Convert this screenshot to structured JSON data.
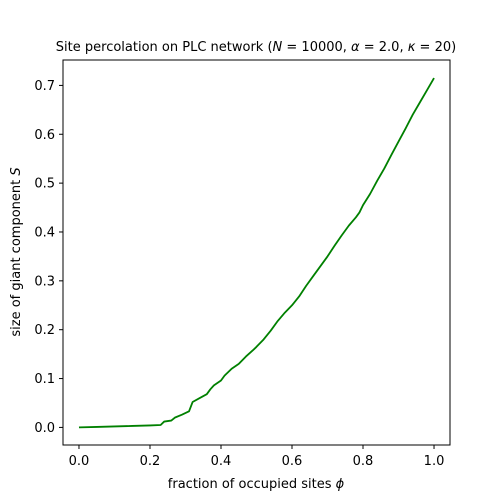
{
  "chart_data": {
    "type": "line",
    "title": "Site percolation on PLC network (N = 10000, α = 2.0, κ = 20)",
    "title_parts": {
      "prefix": "Site percolation on PLC network (",
      "N_symbol": "N",
      "N_eq": " = 10000, ",
      "alpha_symbol": "α",
      "alpha_eq": " = 2.0, ",
      "kappa_symbol": "κ",
      "kappa_eq": " = 20)"
    },
    "xlabel": "fraction of occupied sites ϕ",
    "xlabel_parts": {
      "text": "fraction of occupied sites ",
      "symbol": "ϕ"
    },
    "ylabel": "size of giant component S",
    "ylabel_parts": {
      "text": "size of giant component ",
      "symbol": "S"
    },
    "xlim": [
      -0.045,
      1.045
    ],
    "ylim": [
      -0.036,
      0.752
    ],
    "xticks": [
      0.0,
      0.2,
      0.4,
      0.6,
      0.8,
      1.0
    ],
    "xtick_labels": [
      "0.0",
      "0.2",
      "0.4",
      "0.6",
      "0.8",
      "1.0"
    ],
    "yticks": [
      0.0,
      0.1,
      0.2,
      0.3,
      0.4,
      0.5,
      0.6,
      0.7
    ],
    "ytick_labels": [
      "0.0",
      "0.1",
      "0.2",
      "0.3",
      "0.4",
      "0.5",
      "0.6",
      "0.7"
    ],
    "grid": false,
    "legend": "none",
    "series": [
      {
        "color": "#008000",
        "x": [
          0.0,
          0.05,
          0.1,
          0.15,
          0.2,
          0.23,
          0.24,
          0.26,
          0.27,
          0.29,
          0.31,
          0.32,
          0.34,
          0.36,
          0.37,
          0.38,
          0.4,
          0.41,
          0.43,
          0.45,
          0.47,
          0.49,
          0.5,
          0.52,
          0.54,
          0.56,
          0.58,
          0.6,
          0.62,
          0.64,
          0.66,
          0.68,
          0.7,
          0.72,
          0.74,
          0.76,
          0.78,
          0.79,
          0.8,
          0.82,
          0.84,
          0.86,
          0.88,
          0.9,
          0.92,
          0.94,
          0.96,
          0.98,
          1.0
        ],
        "y": [
          0.0,
          0.001,
          0.002,
          0.003,
          0.004,
          0.005,
          0.012,
          0.014,
          0.02,
          0.026,
          0.033,
          0.052,
          0.06,
          0.068,
          0.078,
          0.086,
          0.096,
          0.106,
          0.12,
          0.13,
          0.145,
          0.158,
          0.165,
          0.18,
          0.198,
          0.218,
          0.235,
          0.25,
          0.268,
          0.29,
          0.31,
          0.33,
          0.35,
          0.372,
          0.393,
          0.413,
          0.43,
          0.44,
          0.455,
          0.478,
          0.505,
          0.53,
          0.558,
          0.585,
          0.612,
          0.64,
          0.665,
          0.69,
          0.715
        ]
      }
    ]
  }
}
